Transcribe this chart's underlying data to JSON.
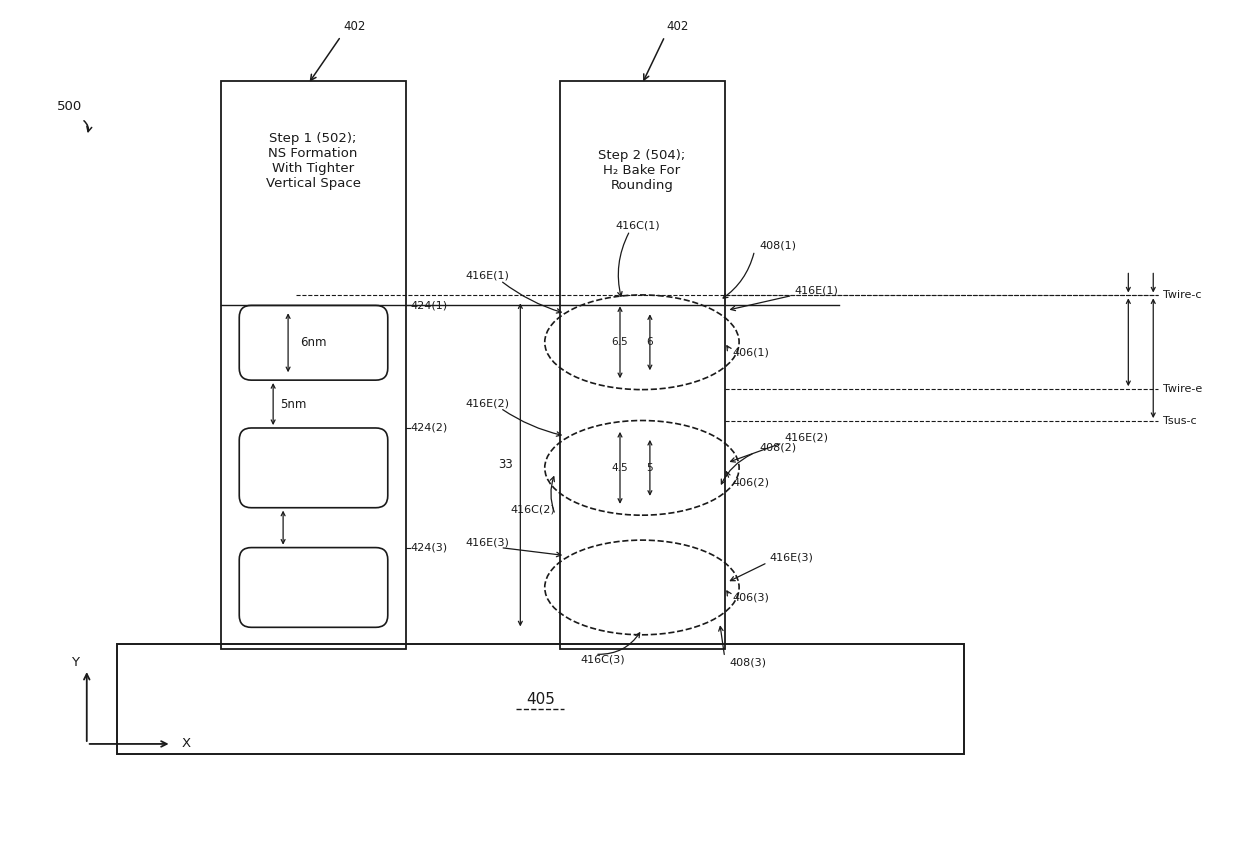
{
  "bg_color": "#ffffff",
  "line_color": "#1a1a1a",
  "fig_width": 12.4,
  "fig_height": 8.46,
  "label_500": "500",
  "label_step1": "Step 1 (502);\nNS Formation\nWith Tighter\nVertical Space",
  "label_step2": "Step 2 (504);\nH₂ Bake For\nRounding",
  "label_405": "405",
  "label_6nm": "6nm",
  "label_5nm": "5nm",
  "label_33": "33",
  "label_65": "6.5",
  "label_6": "6",
  "label_45": "4.5",
  "label_5": "5",
  "twire_labels": [
    "Twire-c",
    "Twire-e",
    "Tsus-c"
  ]
}
